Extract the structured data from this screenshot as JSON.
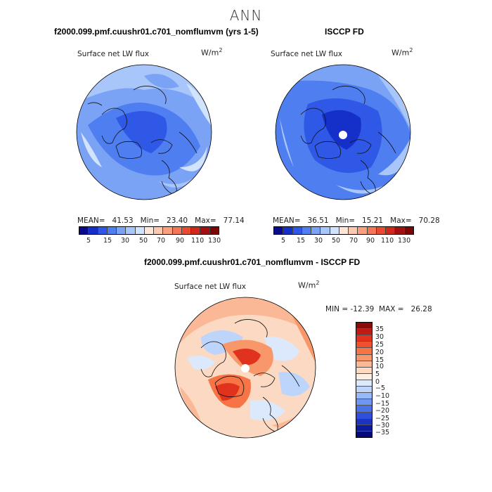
{
  "title": "ANN",
  "panel1": {
    "case_title": "f2000.099.pmf.cuushr01.c701_nomflumvm (yrs 1-5)",
    "variable": "Surface net LW flux",
    "units": "W/m",
    "units_exp": "2",
    "stats": "MEAN=   41.53   Min=   23.40   Max=   77.14"
  },
  "panel2": {
    "case_title": "ISCCP FD",
    "variable": "Surface net LW flux",
    "units": "W/m",
    "units_exp": "2",
    "stats": "MEAN=   36.51   Min=   15.21   Max=   70.28"
  },
  "panel3": {
    "case_title": "f2000.099.pmf.cuushr01.c701_nomflumvm - ISCCP FD",
    "variable": "Surface net LW flux",
    "units": "W/m",
    "units_exp": "2",
    "stats": "MIN = -12.39  MAX =   26.28"
  },
  "colorbar_top": {
    "labels": [
      "5",
      "15",
      "30",
      "50",
      "70",
      "90",
      "110",
      "130"
    ],
    "colors": [
      "#0a0a8c",
      "#1530c8",
      "#2f58e6",
      "#4f7ef0",
      "#7aa3f6",
      "#a9c6fb",
      "#d2e3fd",
      "#fde6d8",
      "#fcc8ae",
      "#f9a07f",
      "#f47656",
      "#e84b2f",
      "#d1281b",
      "#a10f10",
      "#7a0606"
    ]
  },
  "colorbar_diff": {
    "labels": [
      "35",
      "30",
      "25",
      "20",
      "15",
      "10",
      "5",
      "0",
      "−5",
      "−10",
      "−15",
      "−20",
      "−25",
      "−30",
      "−35"
    ],
    "colors": [
      "#8a0b0b",
      "#c01a12",
      "#e0321d",
      "#f0502b",
      "#f67445",
      "#f8976a",
      "#fab896",
      "#fcd9c3",
      "#fdeee2",
      "#dce9fc",
      "#bdd4fb",
      "#97b9f7",
      "#6f96f1",
      "#4a73ea",
      "#2e50da",
      "#1a34c4",
      "#0c1a9e",
      "#050a7a"
    ]
  }
}
